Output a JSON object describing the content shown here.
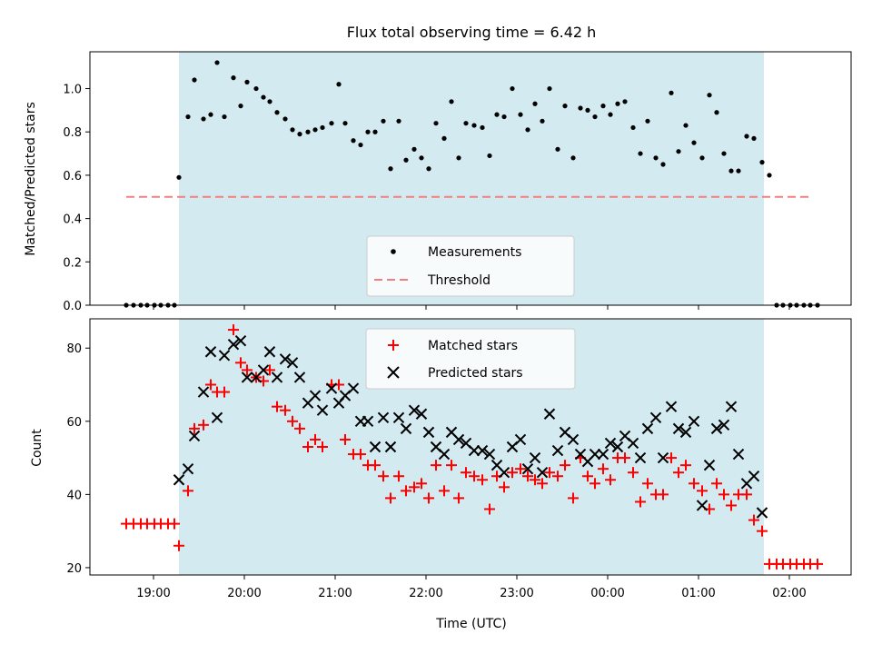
{
  "chart_data": [
    {
      "type": "scatter",
      "title": "Flux total observing time = 6.42 h",
      "ylabel": "Matched/Predicted stars",
      "xlabel": "",
      "x_unit": "hours since 00:00 UTC (tick labels HH:MM)",
      "xlim": [
        18.3,
        26.68
      ],
      "ylim": [
        0,
        1.17
      ],
      "y_ticks": [
        "0.0",
        "0.2",
        "0.4",
        "0.6",
        "0.8",
        "1.0"
      ],
      "shaded_x_range": [
        19.28,
        25.72
      ],
      "shade_color": "#d4eaf1",
      "legend_position": "lower center",
      "series": [
        {
          "name": "Measurements",
          "marker": "dot",
          "color": "#000000",
          "x": [
            18.7,
            18.78,
            18.86,
            18.93,
            19.01,
            19.08,
            19.16,
            19.23,
            19.28,
            19.38,
            19.45,
            19.55,
            19.63,
            19.7,
            19.78,
            19.88,
            19.96,
            20.03,
            20.13,
            20.21,
            20.28,
            20.36,
            20.45,
            20.53,
            20.61,
            20.7,
            20.78,
            20.86,
            20.96,
            21.04,
            21.11,
            21.2,
            21.28,
            21.36,
            21.44,
            21.53,
            21.61,
            21.7,
            21.78,
            21.87,
            21.95,
            22.03,
            22.11,
            22.2,
            22.28,
            22.36,
            22.44,
            22.53,
            22.62,
            22.7,
            22.78,
            22.86,
            22.95,
            23.04,
            23.12,
            23.2,
            23.28,
            23.36,
            23.45,
            23.53,
            23.62,
            23.7,
            23.78,
            23.86,
            23.95,
            24.03,
            24.11,
            24.19,
            24.28,
            24.36,
            24.44,
            24.53,
            24.61,
            24.7,
            24.78,
            24.86,
            24.95,
            25.04,
            25.12,
            25.2,
            25.28,
            25.36,
            25.44,
            25.53,
            25.61,
            25.7,
            25.78,
            25.86,
            25.93,
            26.01,
            26.08,
            26.16,
            26.23,
            26.31
          ],
          "y": [
            0,
            0,
            0,
            0,
            0,
            0,
            0,
            0,
            0.59,
            0.87,
            1.04,
            0.86,
            0.88,
            1.12,
            0.87,
            1.05,
            0.92,
            1.03,
            1.0,
            0.96,
            0.94,
            0.89,
            0.86,
            0.81,
            0.79,
            0.8,
            0.81,
            0.82,
            0.84,
            1.02,
            0.84,
            0.76,
            0.74,
            0.8,
            0.8,
            0.85,
            0.63,
            0.85,
            0.67,
            0.72,
            0.68,
            0.63,
            0.84,
            0.77,
            0.94,
            0.68,
            0.84,
            0.83,
            0.82,
            0.69,
            0.88,
            0.87,
            1.0,
            0.88,
            0.81,
            0.93,
            0.85,
            1.0,
            0.72,
            0.92,
            0.68,
            0.91,
            0.9,
            0.87,
            0.92,
            0.88,
            0.93,
            0.94,
            0.82,
            0.7,
            0.85,
            0.68,
            0.65,
            0.98,
            0.71,
            0.83,
            0.75,
            0.68,
            0.97,
            0.89,
            0.7,
            0.62,
            0.62,
            0.78,
            0.77,
            0.66,
            0.6,
            0,
            0,
            0,
            0,
            0,
            0,
            0
          ]
        },
        {
          "name": "Threshold",
          "marker": "dashed-line",
          "color": "#f08080",
          "x": [
            18.7,
            26.25
          ],
          "y": [
            0.5,
            0.5
          ]
        }
      ]
    },
    {
      "type": "scatter",
      "title": "",
      "ylabel": "Count",
      "xlabel": "Time (UTC)",
      "xlim": [
        18.3,
        26.68
      ],
      "ylim": [
        18,
        88
      ],
      "y_ticks": [
        "20",
        "40",
        "60",
        "80"
      ],
      "x_ticks": [
        {
          "value": 19,
          "label": "19:00"
        },
        {
          "value": 20,
          "label": "20:00"
        },
        {
          "value": 21,
          "label": "21:00"
        },
        {
          "value": 22,
          "label": "22:00"
        },
        {
          "value": 23,
          "label": "23:00"
        },
        {
          "value": 24,
          "label": "00:00"
        },
        {
          "value": 25,
          "label": "01:00"
        },
        {
          "value": 26,
          "label": "02:00"
        }
      ],
      "shaded_x_range": [
        19.28,
        25.72
      ],
      "shade_color": "#d4eaf1",
      "legend_position": "upper center",
      "series": [
        {
          "name": "Matched stars",
          "marker": "plus",
          "color": "#ff0000",
          "x": [
            18.7,
            18.78,
            18.86,
            18.93,
            19.01,
            19.08,
            19.16,
            19.23,
            19.28,
            19.38,
            19.45,
            19.55,
            19.63,
            19.7,
            19.78,
            19.88,
            19.96,
            20.03,
            20.13,
            20.21,
            20.28,
            20.36,
            20.45,
            20.53,
            20.61,
            20.7,
            20.78,
            20.86,
            20.96,
            21.04,
            21.11,
            21.2,
            21.28,
            21.36,
            21.44,
            21.53,
            21.61,
            21.7,
            21.78,
            21.87,
            21.95,
            22.03,
            22.11,
            22.2,
            22.28,
            22.36,
            22.44,
            22.53,
            22.62,
            22.7,
            22.78,
            22.86,
            22.95,
            23.04,
            23.12,
            23.2,
            23.28,
            23.36,
            23.45,
            23.53,
            23.62,
            23.7,
            23.78,
            23.86,
            23.95,
            24.03,
            24.11,
            24.19,
            24.28,
            24.36,
            24.44,
            24.53,
            24.61,
            24.7,
            24.78,
            24.86,
            24.95,
            25.04,
            25.12,
            25.2,
            25.28,
            25.36,
            25.44,
            25.53,
            25.61,
            25.7,
            25.78,
            25.86,
            25.93,
            26.01,
            26.08,
            26.16,
            26.23,
            26.31
          ],
          "y": [
            32,
            32,
            32,
            32,
            32,
            32,
            32,
            32,
            26,
            41,
            58,
            59,
            70,
            68,
            68,
            85,
            76,
            74,
            72,
            71,
            74,
            64,
            63,
            60,
            58,
            53,
            55,
            53,
            70,
            70,
            55,
            51,
            51,
            48,
            48,
            45,
            39,
            45,
            41,
            42,
            43,
            39,
            48,
            41,
            48,
            39,
            46,
            45,
            44,
            36,
            45,
            42,
            46,
            47,
            45,
            44,
            43,
            46,
            45,
            48,
            39,
            50,
            45,
            43,
            47,
            44,
            50,
            50,
            46,
            38,
            43,
            40,
            40,
            50,
            46,
            48,
            43,
            41,
            36,
            43,
            40,
            37,
            40,
            40,
            33,
            30,
            21,
            21,
            21,
            21,
            21,
            21,
            21,
            21
          ]
        },
        {
          "name": "Predicted stars",
          "marker": "x",
          "color": "#000000",
          "x": [
            19.28,
            19.38,
            19.45,
            19.55,
            19.63,
            19.7,
            19.78,
            19.88,
            19.96,
            20.03,
            20.13,
            20.21,
            20.28,
            20.36,
            20.45,
            20.53,
            20.61,
            20.7,
            20.78,
            20.86,
            20.96,
            21.04,
            21.11,
            21.2,
            21.28,
            21.36,
            21.44,
            21.53,
            21.61,
            21.7,
            21.78,
            21.87,
            21.95,
            22.03,
            22.11,
            22.2,
            22.28,
            22.36,
            22.44,
            22.53,
            22.62,
            22.7,
            22.78,
            22.86,
            22.95,
            23.04,
            23.12,
            23.2,
            23.28,
            23.36,
            23.45,
            23.53,
            23.62,
            23.7,
            23.78,
            23.86,
            23.95,
            24.03,
            24.11,
            24.19,
            24.28,
            24.36,
            24.44,
            24.53,
            24.61,
            24.7,
            24.78,
            24.86,
            24.95,
            25.04,
            25.12,
            25.2,
            25.28,
            25.36,
            25.44,
            25.53,
            25.61,
            25.7
          ],
          "y": [
            44,
            47,
            56,
            68,
            79,
            61,
            78,
            81,
            82,
            72,
            72,
            74,
            79,
            72,
            77,
            76,
            72,
            65,
            67,
            63,
            69,
            65,
            67,
            69,
            60,
            60,
            53,
            61,
            53,
            61,
            58,
            63,
            62,
            57,
            53,
            51,
            57,
            55,
            54,
            52,
            52,
            51,
            48,
            46,
            53,
            55,
            47,
            50,
            46,
            62,
            52,
            57,
            55,
            51,
            49,
            51,
            51,
            54,
            53,
            56,
            54,
            50,
            58,
            61,
            50,
            64,
            58,
            57,
            60,
            37,
            48,
            58,
            59,
            64,
            51,
            43,
            45,
            35
          ]
        }
      ]
    }
  ]
}
